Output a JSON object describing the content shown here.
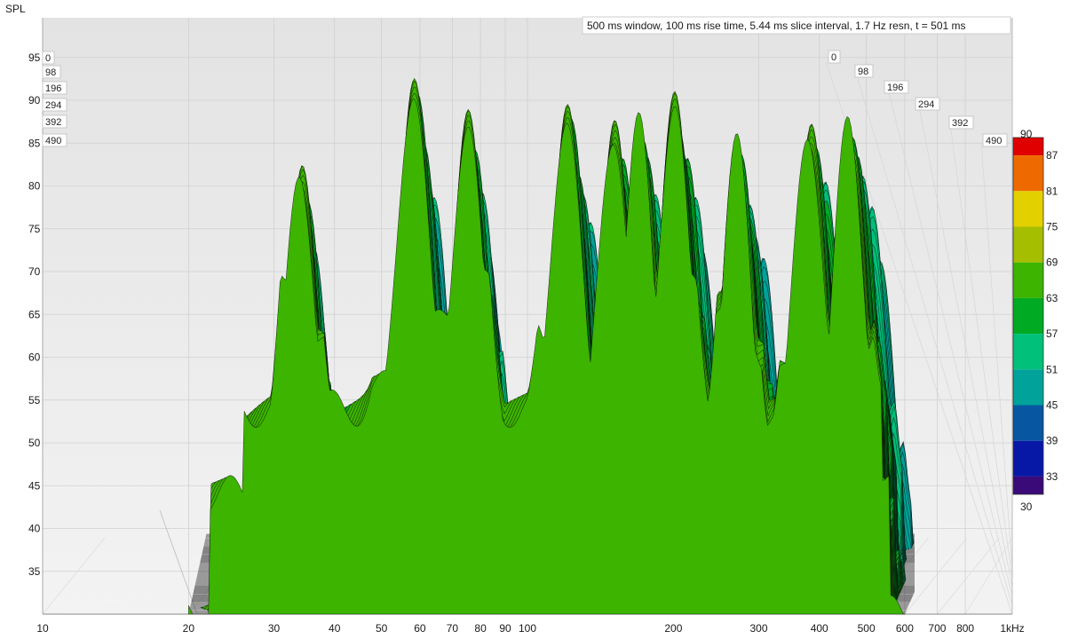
{
  "chart_data": {
    "type": "waterfall",
    "ylabel": "SPL",
    "annotation": "500 ms window, 100 ms rise time, 5.44 ms slice interval, 1.7 Hz resn, t = 501 ms",
    "x_scale": "log",
    "xlim": [
      10,
      1000
    ],
    "ylim": [
      30,
      98
    ],
    "x_ticks": [
      "10",
      "20",
      "30",
      "40",
      "50",
      "60",
      "70",
      "80",
      "90",
      "100",
      "200",
      "300",
      "400",
      "500",
      "600",
      "700",
      "800",
      "1kHz"
    ],
    "y_ticks": [
      "35",
      "40",
      "45",
      "50",
      "55",
      "60",
      "65",
      "70",
      "75",
      "80",
      "85",
      "90",
      "95"
    ],
    "time_ticks_ms": [
      "0",
      "98",
      "196",
      "294",
      "392",
      "490"
    ],
    "colorbar": {
      "ticks": [
        "90",
        "87",
        "81",
        "75",
        "69",
        "63",
        "57",
        "51",
        "45",
        "39",
        "33",
        "30"
      ],
      "bands": [
        {
          "from": 87,
          "to": 90,
          "color": "#e00000"
        },
        {
          "from": 81,
          "to": 87,
          "color": "#ee6a00"
        },
        {
          "from": 75,
          "to": 81,
          "color": "#e2d000"
        },
        {
          "from": 69,
          "to": 75,
          "color": "#a6be00"
        },
        {
          "from": 63,
          "to": 69,
          "color": "#3cb400"
        },
        {
          "from": 57,
          "to": 63,
          "color": "#00aa22"
        },
        {
          "from": 51,
          "to": 57,
          "color": "#00c07a"
        },
        {
          "from": 45,
          "to": 51,
          "color": "#00a29a"
        },
        {
          "from": 39,
          "to": 45,
          "color": "#0656a2"
        },
        {
          "from": 33,
          "to": 39,
          "color": "#0818a6"
        },
        {
          "from": 30,
          "to": 33,
          "color": "#3a0a78"
        }
      ]
    },
    "front_slice_peaks": [
      {
        "freq": 34,
        "spl": 82.5
      },
      {
        "freq": 58,
        "spl": 92
      },
      {
        "freq": 75,
        "spl": 88
      },
      {
        "freq": 120,
        "spl": 89
      },
      {
        "freq": 150,
        "spl": 87
      },
      {
        "freq": 170,
        "spl": 86.5
      },
      {
        "freq": 200,
        "spl": 89.5
      },
      {
        "freq": 270,
        "spl": 84
      },
      {
        "freq": 380,
        "spl": 87
      },
      {
        "freq": 460,
        "spl": 87
      }
    ],
    "slices": 90
  }
}
